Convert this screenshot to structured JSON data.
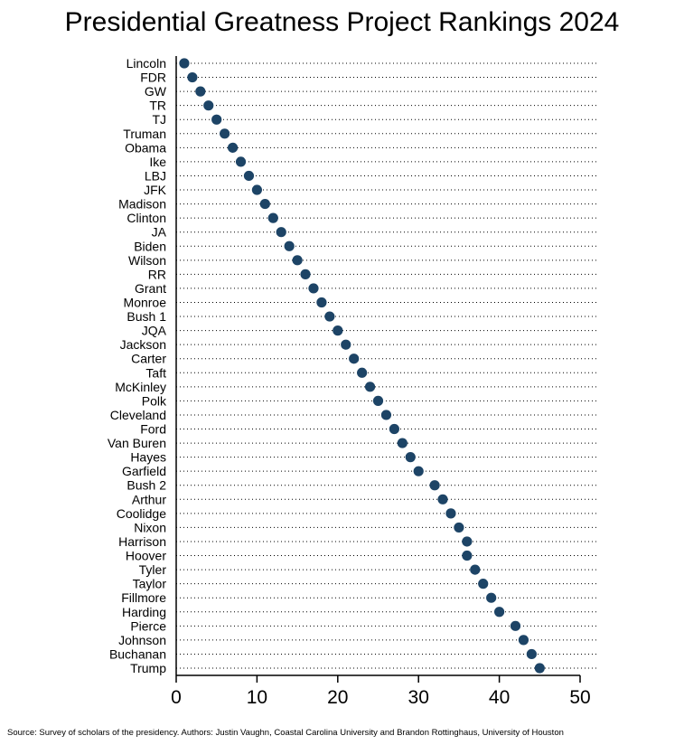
{
  "chart_data": {
    "type": "scatter",
    "title": "Presidential Greatness Project Rankings 2024",
    "xlabel": "",
    "ylabel": "",
    "xlim": [
      0,
      50
    ],
    "xticks": [
      0,
      10,
      20,
      30,
      40,
      50
    ],
    "grid": "dotted horizontal lines per category",
    "marker_color": "#1d4466",
    "categories": [
      "Lincoln",
      "FDR",
      "GW",
      "TR",
      "TJ",
      "Truman",
      "Obama",
      "Ike",
      "LBJ",
      "JFK",
      "Madison",
      "Clinton",
      "JA",
      "Biden",
      "Wilson",
      "RR",
      "Grant",
      "Monroe",
      "Bush 1",
      "JQA",
      "Jackson",
      "Carter",
      "Taft",
      "McKinley",
      "Polk",
      "Cleveland",
      "Ford",
      "Van Buren",
      "Hayes",
      "Garfield",
      "Bush 2",
      "Arthur",
      "Coolidge",
      "Nixon",
      "Harrison",
      "Hoover",
      "Tyler",
      "Taylor",
      "Fillmore",
      "Harding",
      "Pierce",
      "Johnson",
      "Buchanan",
      "Trump"
    ],
    "values": [
      1,
      2,
      3,
      4,
      5,
      6,
      7,
      8,
      9,
      10,
      11,
      12,
      13,
      14,
      15,
      16,
      17,
      18,
      19,
      20,
      21,
      22,
      23,
      24,
      25,
      26,
      27,
      28,
      29,
      30,
      32,
      33,
      34,
      35,
      36,
      36,
      37,
      38,
      39,
      40,
      42,
      43,
      44,
      45
    ]
  },
  "source_note": "Source: Survey of scholars of the presidency.  Authors: Justin Vaughn, Coastal Carolina University and Brandon Rottinghaus, University of Houston"
}
